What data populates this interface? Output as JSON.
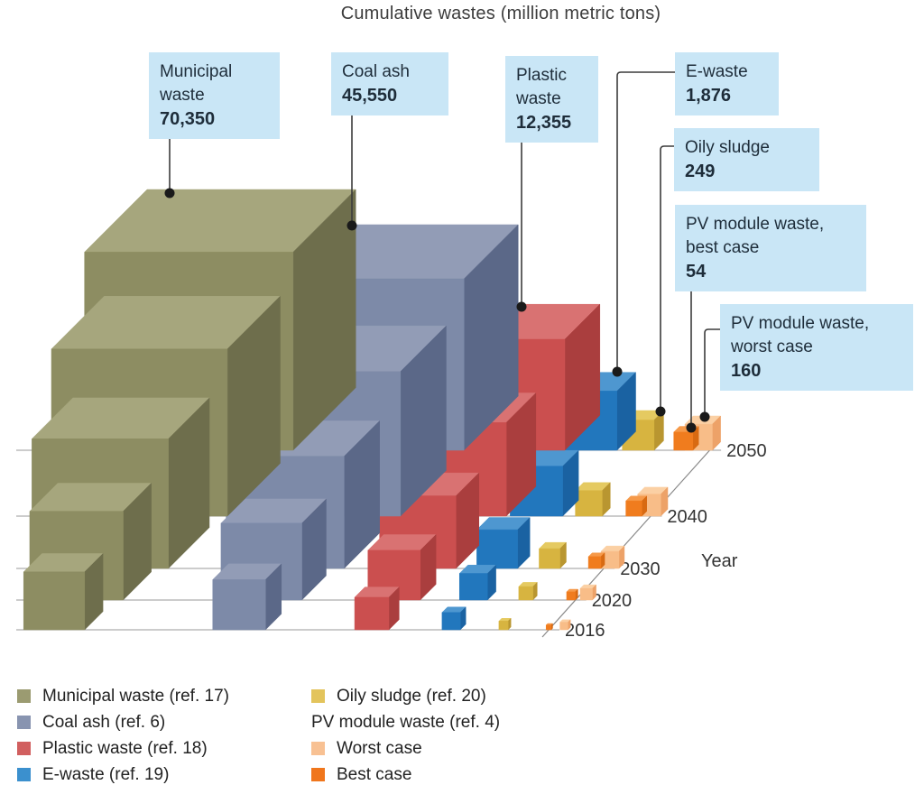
{
  "ui_colors": {
    "background": "#ffffff",
    "callout_bg": "#c9e6f6",
    "callout_text": "#1e2d3a",
    "leader_line": "#3c3c3c",
    "baseline": "#999999",
    "axis_text": "#333333"
  },
  "chart_data": {
    "type": "bar",
    "projection": "3d-cubes",
    "title": "Cumulative wastes (million metric tons)",
    "axis_label": "Year",
    "years": [
      "2016",
      "2020",
      "2030",
      "2040",
      "2050"
    ],
    "unit": "million metric tons",
    "series": [
      {
        "id": "municipal",
        "name": "Municipal waste",
        "total_2050": 70350,
        "total_label": "70,350",
        "values_est": [
          1760,
          6330,
          19700,
          42210,
          70350
        ],
        "colors": {
          "top": "#a6a67d",
          "front": "#8d8d62",
          "side": "#6e6e4c"
        }
      },
      {
        "id": "coal_ash",
        "name": "Coal ash",
        "total_2050": 45550,
        "total_label": "45,550",
        "values_est": [
          1140,
          4100,
          12750,
          27330,
          45550
        ],
        "colors": {
          "top": "#929cb6",
          "front": "#7d8aa8",
          "side": "#5b6888"
        }
      },
      {
        "id": "plastic",
        "name": "Plastic waste",
        "total_2050": 12355,
        "total_label": "12,355",
        "values_est": [
          310,
          1110,
          3460,
          7410,
          12355
        ],
        "colors": {
          "top": "#d97272",
          "front": "#cb4f4f",
          "side": "#aa3e3e"
        }
      },
      {
        "id": "ewaste",
        "name": "E-waste",
        "total_2050": 1876,
        "total_label": "1,876",
        "values_est": [
          47,
          170,
          525,
          1125,
          1876
        ],
        "colors": {
          "top": "#4e97d0",
          "front": "#2277bd",
          "side": "#1a62a2"
        }
      },
      {
        "id": "oily_sludge",
        "name": "Oily sludge",
        "total_2050": 249,
        "total_label": "249",
        "values_est": [
          6,
          22,
          70,
          150,
          249
        ],
        "colors": {
          "top": "#e5ca61",
          "front": "#d7b440",
          "side": "#b99630"
        }
      },
      {
        "id": "pv_best",
        "name": "PV module waste, best case",
        "total_2050": 54,
        "total_label": "54",
        "values_est": [
          1,
          5,
          15,
          32,
          54
        ],
        "colors": {
          "top": "#f69a4a",
          "front": "#f07c1e",
          "side": "#d86a12"
        }
      },
      {
        "id": "pv_worst",
        "name": "PV module waste, worst case",
        "total_2050": 160,
        "total_label": "160",
        "values_est": [
          4,
          14,
          45,
          96,
          160
        ],
        "colors": {
          "top": "#fbd0a4",
          "front": "#f8bd88",
          "side": "#eda268"
        }
      }
    ]
  },
  "callouts": [
    {
      "id": "municipal",
      "label": "Municipal waste",
      "value": "70,350"
    },
    {
      "id": "coal_ash",
      "label": "Coal ash",
      "value": "45,550"
    },
    {
      "id": "plastic",
      "label": "Plastic waste",
      "value": "12,355"
    },
    {
      "id": "ewaste",
      "label": "E-waste",
      "value": "1,876"
    },
    {
      "id": "oily",
      "label": "Oily sludge",
      "value": "249"
    },
    {
      "id": "pv_best",
      "label": "PV module waste, best case",
      "value": "54"
    },
    {
      "id": "pv_worst",
      "label": "PV module waste, worst case",
      "value": "160"
    }
  ],
  "legend": {
    "left": [
      {
        "label": "Municipal waste (ref. 17)",
        "color": "#9b9b71"
      },
      {
        "label": "Coal ash (ref. 6)",
        "color": "#8894b0"
      },
      {
        "label": "Plastic waste (ref. 18)",
        "color": "#d15f5f"
      },
      {
        "label": "E-waste (ref. 19)",
        "color": "#3b90ce"
      }
    ],
    "right": [
      {
        "label": "Oily sludge (ref. 20)",
        "color": "#e3c45c"
      },
      {
        "label": "PV module waste (ref. 4)",
        "color": ""
      },
      {
        "label": "Worst case",
        "color": "#f8c193"
      },
      {
        "label": "Best case",
        "color": "#f0761c"
      }
    ]
  }
}
